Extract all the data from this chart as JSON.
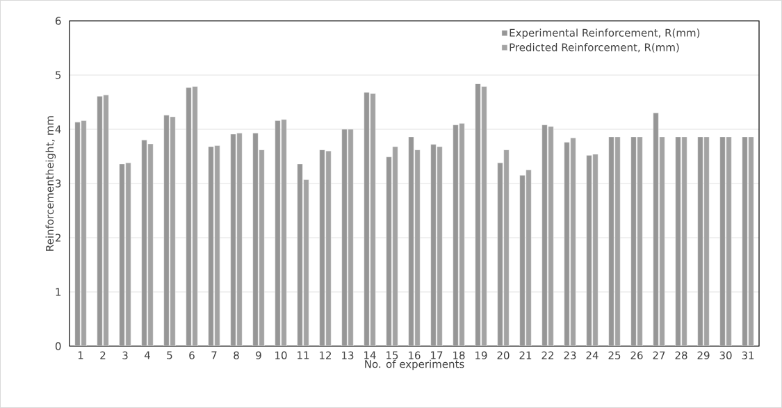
{
  "chart_data": {
    "type": "bar",
    "xlabel": "No. of experiments",
    "ylabel": "Reinforcementheight, mm",
    "categories": [
      "1",
      "2",
      "3",
      "4",
      "5",
      "6",
      "7",
      "8",
      "9",
      "10",
      "11",
      "12",
      "13",
      "14",
      "15",
      "16",
      "17",
      "18",
      "19",
      "20",
      "21",
      "22",
      "23",
      "24",
      "25",
      "26",
      "27",
      "28",
      "29",
      "30",
      "31"
    ],
    "series": [
      {
        "name": "Experimental Reinforcement, R(mm)",
        "color": "#969696",
        "values": [
          4.13,
          4.61,
          3.36,
          3.8,
          4.26,
          4.77,
          3.68,
          3.91,
          3.93,
          4.16,
          3.36,
          3.62,
          4.0,
          4.68,
          3.49,
          3.86,
          3.72,
          4.08,
          4.84,
          3.38,
          3.15,
          4.08,
          3.76,
          3.52,
          3.86,
          3.86,
          4.3,
          3.86,
          3.86,
          3.86,
          3.86
        ]
      },
      {
        "name": "Predicted Reinforcement, R(mm)",
        "color": "#a3a3a3",
        "values": [
          4.16,
          4.63,
          3.38,
          3.73,
          4.23,
          4.79,
          3.7,
          3.93,
          3.62,
          4.18,
          3.07,
          3.6,
          4.0,
          4.66,
          3.68,
          3.62,
          3.68,
          4.11,
          4.79,
          3.62,
          3.25,
          4.05,
          3.84,
          3.54,
          3.86,
          3.86,
          3.86,
          3.86,
          3.86,
          3.86,
          3.86
        ]
      }
    ],
    "ylim": [
      0,
      6
    ],
    "yticks": [
      0,
      1,
      2,
      3,
      4,
      5,
      6
    ],
    "grid": "y",
    "legend": "top right"
  }
}
